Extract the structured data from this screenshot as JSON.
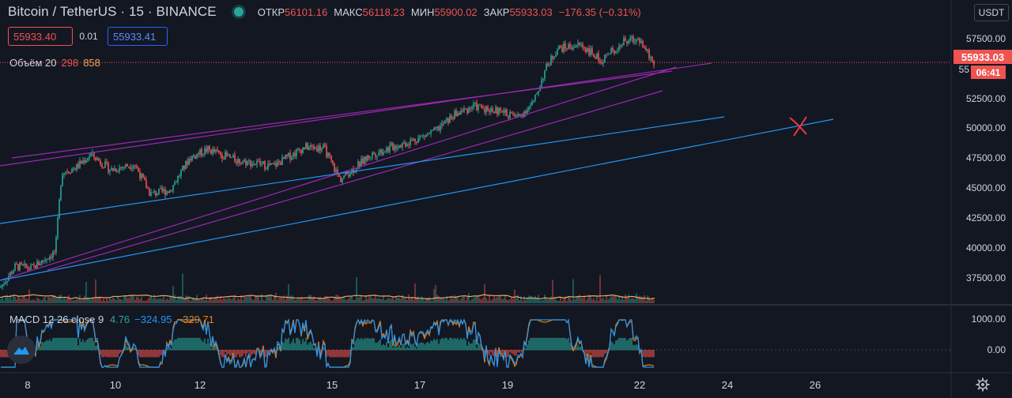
{
  "header": {
    "symbol": "Bitcoin / TetherUS · 15 · BINANCE",
    "open_label": "ОТКР",
    "open": "56101.16",
    "high_label": "МАКС",
    "high": "56118.23",
    "low_label": "МИН",
    "low": "55900.02",
    "close_label": "ЗАКР",
    "close": "55933.03",
    "change": "−176.35 (−0.31%)"
  },
  "trade": {
    "sell": "55933.40",
    "spread": "0.01",
    "buy": "55933.41"
  },
  "volume": {
    "label": "Объём 20",
    "v1": "298",
    "v2": "858"
  },
  "macd": {
    "label": "MACD 12 26 close 9",
    "hist": "4.76",
    "macd": "−324.95",
    "signal": "−329.71"
  },
  "price_axis": {
    "currency": "USDT",
    "ticks": [
      "57500.00",
      "52500.00",
      "50000.00",
      "47500.00",
      "45000.00",
      "42500.00",
      "40000.00",
      "37500.00"
    ],
    "top_partial": "6",
    "partial_55": "55",
    "current_price": "55933.03",
    "countdown": "06:41"
  },
  "macd_axis": {
    "ticks": [
      "1000.00",
      "0.00"
    ]
  },
  "time_axis": {
    "ticks": [
      "8",
      "10",
      "12",
      "15",
      "17",
      "19",
      "22",
      "24",
      "26"
    ]
  },
  "colors": {
    "bg": "#131722",
    "up": "#26a69a",
    "down": "#ef5350",
    "purple_line": "#9c27b0",
    "blue_line": "#2196f3",
    "mark": "#f23645"
  },
  "chart_data": {
    "type": "line",
    "ylim": [
      35500,
      61000
    ],
    "x": [
      "8",
      "10",
      "12",
      "15",
      "17",
      "19",
      "22"
    ],
    "series": [
      {
        "values": [
          37600,
          47200,
          47800,
          46600,
          48600,
          52200,
          55933
        ]
      }
    ]
  }
}
